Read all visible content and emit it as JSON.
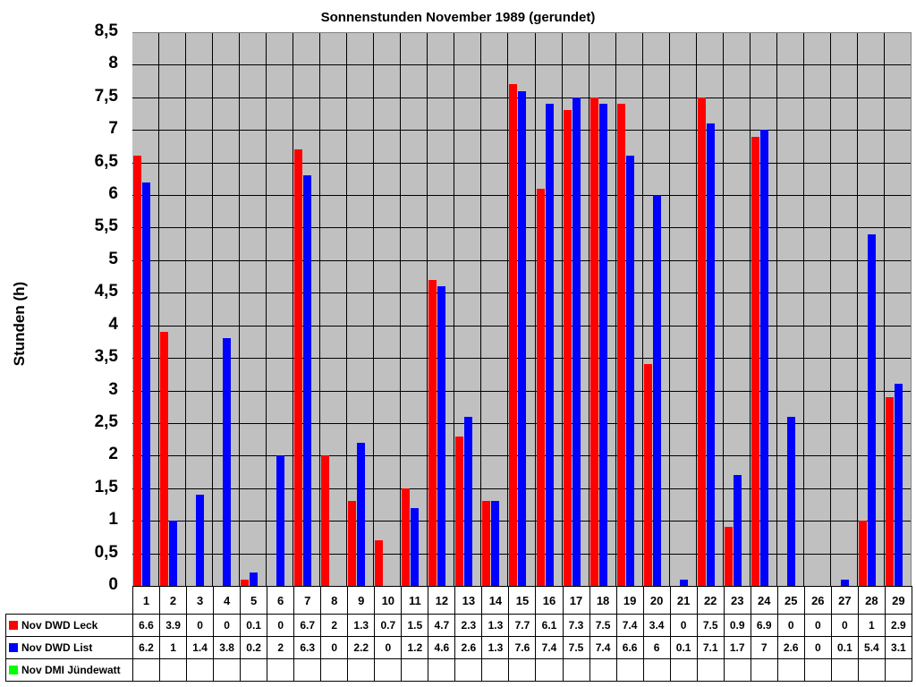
{
  "chart_data": {
    "type": "bar",
    "title": "Sonnenstunden November 1989 (gerundet)",
    "xlabel": "",
    "ylabel": "Stunden (h)",
    "ylim": [
      0,
      8.5
    ],
    "yticks": [
      "0",
      "0,5",
      "1",
      "1,5",
      "2",
      "2,5",
      "3",
      "3,5",
      "4",
      "4,5",
      "5",
      "5,5",
      "6",
      "6,5",
      "7",
      "7,5",
      "8",
      "8,5"
    ],
    "grid": true,
    "legend_position": "data-table",
    "categories": [
      "1",
      "2",
      "3",
      "4",
      "5",
      "6",
      "7",
      "8",
      "9",
      "10",
      "11",
      "12",
      "13",
      "14",
      "15",
      "16",
      "17",
      "18",
      "19",
      "20",
      "21",
      "22",
      "23",
      "24",
      "25",
      "26",
      "27",
      "28",
      "29"
    ],
    "series": [
      {
        "name": "Nov DWD Leck",
        "color": "#ff0000",
        "values": [
          6.6,
          3.9,
          0,
          0,
          0.1,
          0,
          6.7,
          2,
          1.3,
          0.7,
          1.5,
          4.7,
          2.3,
          1.3,
          7.7,
          6.1,
          7.3,
          7.5,
          7.4,
          3.4,
          0,
          7.5,
          0.9,
          6.9,
          0,
          0,
          0,
          1,
          2.9
        ]
      },
      {
        "name": "Nov DWD List",
        "color": "#0000ff",
        "values": [
          6.2,
          1,
          1.4,
          3.8,
          0.2,
          2,
          6.3,
          0,
          2.2,
          0,
          1.2,
          4.6,
          2.6,
          1.3,
          7.6,
          7.4,
          7.5,
          7.4,
          6.6,
          6,
          0.1,
          7.1,
          1.7,
          7,
          2.6,
          0,
          0.1,
          5.4,
          3.1
        ]
      },
      {
        "name": "Nov DMI Jündewatt",
        "color": "#00ff00",
        "values": [
          null,
          null,
          null,
          null,
          null,
          null,
          null,
          null,
          null,
          null,
          null,
          null,
          null,
          null,
          null,
          null,
          null,
          null,
          null,
          null,
          null,
          null,
          null,
          null,
          null,
          null,
          null,
          null,
          null
        ]
      }
    ]
  }
}
